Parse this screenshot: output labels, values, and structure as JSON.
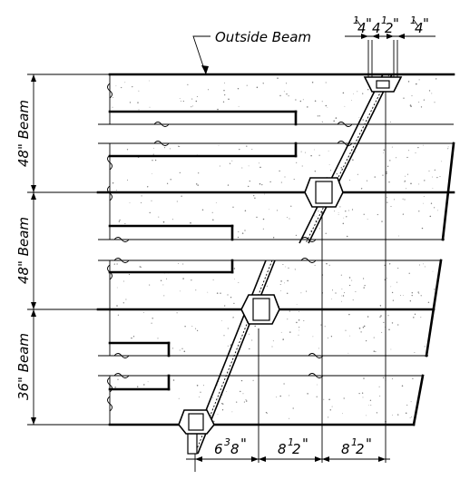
{
  "callouts": {
    "outside_beam": "Outside Beam"
  },
  "top_dimensions": {
    "left": {
      "whole": "",
      "num": "1",
      "den": "4",
      "unit": "\""
    },
    "middle": {
      "whole": "4",
      "num": "1",
      "den": "2",
      "unit": "\""
    },
    "right": {
      "whole": "",
      "num": "1",
      "den": "4",
      "unit": "\""
    }
  },
  "beam_labels": [
    {
      "text": "48\" Beam"
    },
    {
      "text": "48\" Beam"
    },
    {
      "text": "36\" Beam"
    }
  ],
  "bottom_dimensions": [
    {
      "whole": "6",
      "num": "3",
      "den": "8",
      "unit": "\""
    },
    {
      "whole": "8",
      "num": "1",
      "den": "2",
      "unit": "\""
    },
    {
      "whole": "8",
      "num": "1",
      "den": "2",
      "unit": "\""
    }
  ]
}
